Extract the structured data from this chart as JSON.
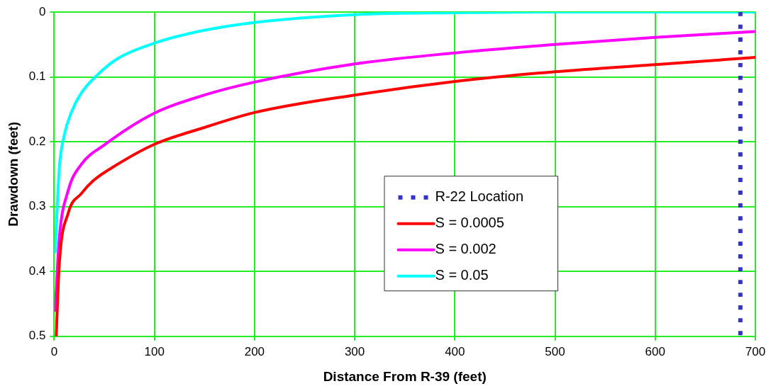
{
  "chart_data": {
    "type": "line",
    "xlabel": "Distance From R-39 (feet)",
    "ylabel": "Drawdown (feet)",
    "xlim": [
      0,
      700
    ],
    "xticks": [
      0,
      100,
      200,
      300,
      400,
      500,
      600,
      700
    ],
    "ylim": [
      0.5,
      0
    ],
    "yticks": [
      0,
      0.1,
      0.2,
      0.3,
      0.4,
      0.5
    ],
    "grid": true,
    "legend": "center right",
    "marker": "none",
    "series": [
      {
        "name": "R-22 Location",
        "color": "#3333cc",
        "line_style": "dotted",
        "x": [
          685,
          685
        ],
        "values": [
          0,
          0.5
        ]
      },
      {
        "name": "S = 0.0005",
        "color": "#ff0000",
        "line_style": "solid",
        "x": [
          2,
          5,
          14,
          27,
          39,
          63,
          100,
          150,
          200,
          300,
          400,
          500,
          600,
          700
        ],
        "values": [
          0.5,
          0.39,
          0.31,
          0.28,
          0.26,
          0.235,
          0.204,
          0.178,
          0.155,
          0.128,
          0.107,
          0.092,
          0.081,
          0.07
        ]
      },
      {
        "name": "S = 0.002",
        "color": "#ff00ff",
        "line_style": "solid",
        "x": [
          1,
          5,
          14,
          27,
          50,
          100,
          150,
          200,
          300,
          400,
          500,
          600,
          700
        ],
        "values": [
          0.46,
          0.35,
          0.275,
          0.235,
          0.205,
          0.156,
          0.128,
          0.108,
          0.08,
          0.063,
          0.05,
          0.039,
          0.03
        ]
      },
      {
        "name": "S = 0.05",
        "color": "#00ffff",
        "line_style": "solid",
        "x": [
          1,
          5,
          10,
          17,
          27,
          43,
          63,
          100,
          147,
          200,
          300,
          400,
          500,
          700
        ],
        "values": [
          0.37,
          0.242,
          0.19,
          0.155,
          0.125,
          0.097,
          0.072,
          0.048,
          0.029,
          0.016,
          0.004,
          0.001,
          0,
          0
        ]
      }
    ]
  }
}
